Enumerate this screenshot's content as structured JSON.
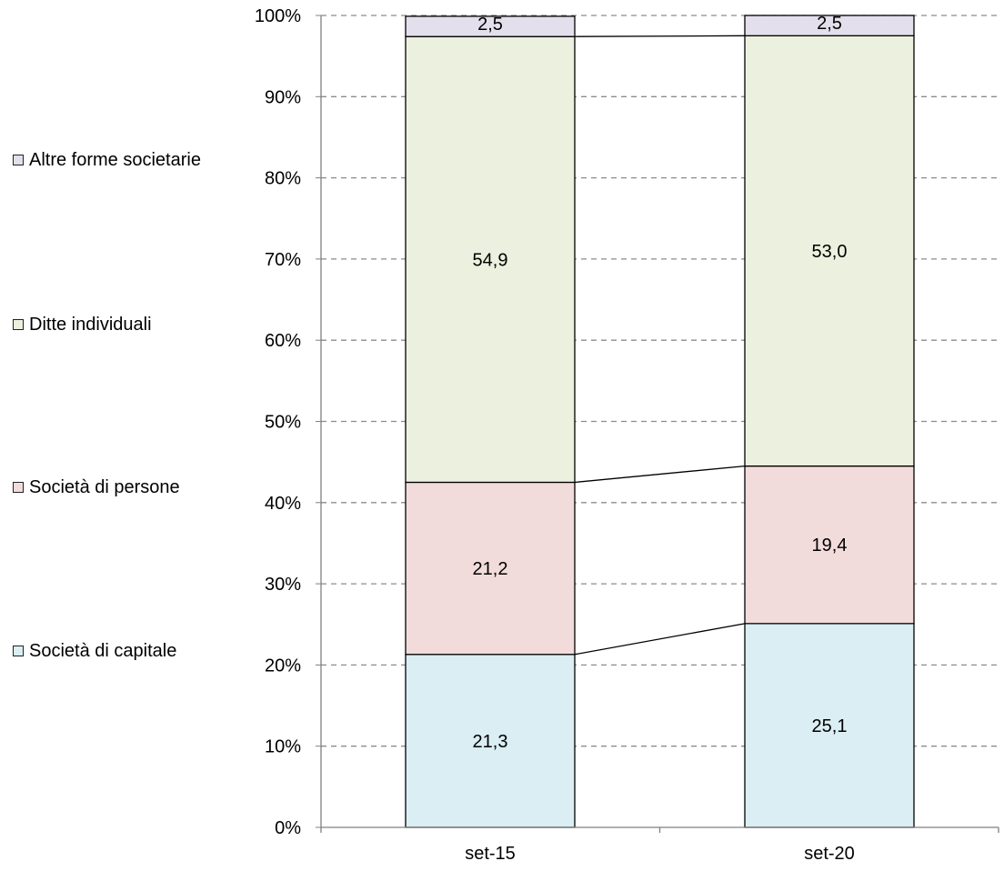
{
  "chart_data": {
    "type": "bar",
    "stacked": true,
    "percent_stacked": true,
    "categories": [
      "set-15",
      "set-20"
    ],
    "series": [
      {
        "name": "Società di capitale",
        "values": [
          21.3,
          25.1
        ],
        "color": "#daeef3",
        "labels": [
          "21,3",
          "25,1"
        ]
      },
      {
        "name": "Società di persone",
        "values": [
          21.2,
          19.4
        ],
        "color": "#f2dcdb",
        "labels": [
          "21,2",
          "19,4"
        ]
      },
      {
        "name": "Ditte individuali",
        "values": [
          54.9,
          53.0
        ],
        "color": "#ebf1de",
        "labels": [
          "54,9",
          "53,0"
        ]
      },
      {
        "name": "Altre forme societarie",
        "values": [
          2.5,
          2.5
        ],
        "color": "#e4dfec",
        "labels": [
          "2,5",
          "2,5"
        ]
      }
    ],
    "y_ticks": [
      "0%",
      "10%",
      "20%",
      "30%",
      "40%",
      "50%",
      "60%",
      "70%",
      "80%",
      "90%",
      "100%"
    ],
    "ylim": [
      0,
      100
    ],
    "grid": true,
    "series_lines": true,
    "legend_position": "left"
  }
}
